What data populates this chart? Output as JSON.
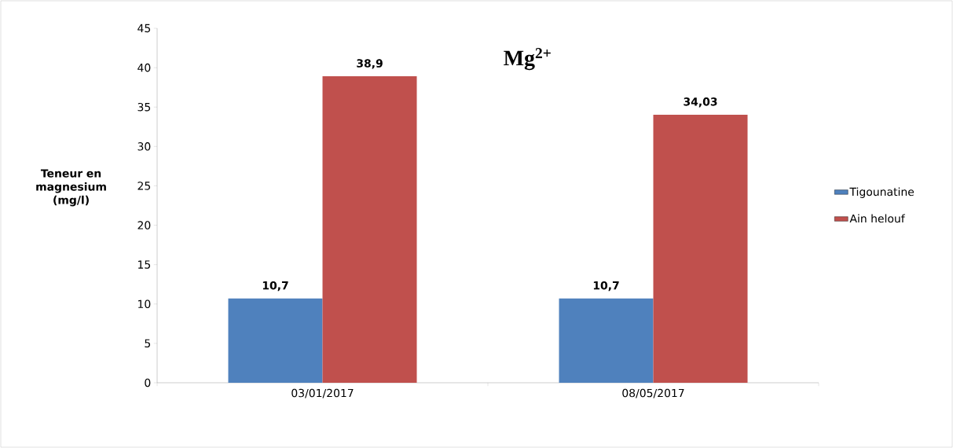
{
  "chart_data": {
    "type": "bar",
    "title": "Mg$^{2+}$",
    "ylabel": "Teneur en magnesium (mg/l)",
    "categories": [
      "03/01/2017",
      "08/05/2017"
    ],
    "series": [
      {
        "name": "Tigounatine",
        "color": "#4f81bd",
        "values": [
          10.7,
          10.7
        ],
        "value_labels": [
          "10,7",
          "10,7"
        ]
      },
      {
        "name": "Ain helouf",
        "color": "#c0504d",
        "values": [
          38.9,
          34.03
        ],
        "value_labels": [
          "38,9",
          "34,03"
        ]
      }
    ],
    "ylim": [
      0,
      45
    ],
    "yticks": [
      0,
      5,
      10,
      15,
      20,
      25,
      30,
      35,
      40,
      45
    ],
    "legend": "right"
  }
}
